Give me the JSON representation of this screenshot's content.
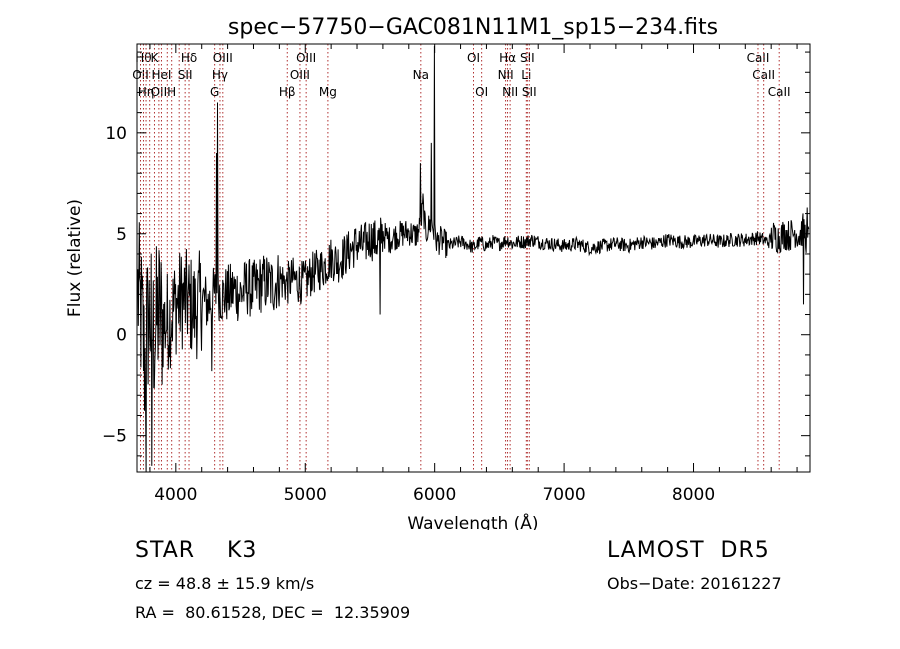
{
  "chart_data": {
    "type": "line",
    "title": "spec−57750−GAC081N11M1_sp15−234.fits",
    "xlabel": "Wavelength (Å)",
    "ylabel": "Flux (relative)",
    "xlim": [
      3700,
      8900
    ],
    "ylim": [
      -6.8,
      14.4
    ],
    "x_ticks": [
      4000,
      5000,
      6000,
      7000,
      8000
    ],
    "y_ticks": [
      -5,
      0,
      5,
      10
    ],
    "grid": false,
    "series_color": "#000000",
    "line_marker_color": "#b03030",
    "spectrum_anchor_points": {
      "x": [
        3710,
        3740,
        3760,
        3780,
        3800,
        3830,
        3870,
        3900,
        3950,
        4000,
        4050,
        4100,
        4150,
        4200,
        4250,
        4300,
        4330,
        4360,
        4400,
        4450,
        4500,
        4550,
        4600,
        4650,
        4700,
        4750,
        4800,
        4860,
        4900,
        4950,
        5000,
        5050,
        5100,
        5150,
        5200,
        5250,
        5300,
        5350,
        5400,
        5450,
        5500,
        5550,
        5600,
        5650,
        5700,
        5750,
        5800,
        5850,
        5880,
        5895,
        5910,
        5930,
        5950,
        5980,
        5990,
        6000,
        6020,
        6050,
        6100,
        6150,
        6200,
        6250,
        6300,
        6350,
        6400,
        6450,
        6500,
        6560,
        6600,
        6650,
        6700,
        6750,
        6800,
        6900,
        7000,
        7100,
        7200,
        7300,
        7400,
        7500,
        7600,
        7700,
        7800,
        7900,
        8000,
        8100,
        8200,
        8300,
        8400,
        8500,
        8540,
        8580,
        8620,
        8660,
        8700,
        8740,
        8760,
        8790,
        8810,
        8830,
        8850,
        8870,
        8890
      ],
      "y": [
        2.0,
        0.5,
        -1.5,
        0.5,
        1.0,
        0.0,
        1.2,
        0.5,
        0.8,
        1.5,
        1.8,
        1.6,
        1.2,
        1.8,
        1.5,
        2.0,
        2.2,
        1.9,
        2.0,
        2.2,
        2.0,
        2.4,
        2.2,
        2.5,
        2.6,
        2.4,
        2.8,
        2.5,
        2.8,
        2.6,
        2.6,
        3.0,
        3.2,
        3.4,
        3.8,
        3.6,
        3.9,
        4.2,
        4.5,
        4.4,
        4.8,
        4.6,
        5.0,
        4.7,
        4.9,
        5.0,
        5.1,
        4.9,
        5.2,
        5.5,
        6.5,
        5.0,
        5.3,
        5.6,
        5.1,
        4.9,
        4.6,
        4.7,
        4.4,
        4.5,
        4.6,
        4.5,
        4.3,
        4.6,
        4.4,
        4.6,
        4.5,
        4.7,
        4.5,
        4.6,
        4.6,
        4.7,
        4.6,
        4.5,
        4.4,
        4.5,
        4.3,
        4.4,
        4.5,
        4.4,
        4.6,
        4.5,
        4.7,
        4.6,
        4.6,
        4.7,
        4.6,
        4.7,
        4.7,
        4.8,
        4.7,
        4.6,
        4.9,
        4.8,
        5.0,
        4.9,
        5.0,
        5.1,
        4.9,
        5.0,
        5.3,
        4.8,
        4.7
      ]
    },
    "spikes": [
      {
        "x": 5890,
        "y": 8.5
      },
      {
        "x": 5998,
        "y": 14.3
      },
      {
        "x": 5975,
        "y": 9.5
      },
      {
        "x": 4322,
        "y": 11.5
      },
      {
        "x": 4316,
        "y": 9.0
      },
      {
        "x": 5580,
        "y": 1.0
      },
      {
        "x": 4280,
        "y": -1.8
      },
      {
        "x": 3770,
        "y": -6.8
      },
      {
        "x": 3815,
        "y": -6.5
      },
      {
        "x": 8850,
        "y": 1.5
      },
      {
        "x": 8880,
        "y": 6.3
      }
    ],
    "line_markers": [
      {
        "x": 3727,
        "row": 1,
        "label": "OII"
      },
      {
        "x": 3750,
        "row": 0,
        "label": "Hθ"
      },
      {
        "x": 3770,
        "row": 2,
        "label": "Hη"
      },
      {
        "x": 3798,
        "row": 0,
        "label": ""
      },
      {
        "x": 3835,
        "row": 0,
        "label": "K"
      },
      {
        "x": 3869,
        "row": 2,
        "label": "OII"
      },
      {
        "x": 3889,
        "row": 1,
        "label": "HeI"
      },
      {
        "x": 3934,
        "row": 0,
        "label": ""
      },
      {
        "x": 3968,
        "row": 2,
        "label": "H"
      },
      {
        "x": 4026,
        "row": 0,
        "label": ""
      },
      {
        "x": 4072,
        "row": 1,
        "label": "SII"
      },
      {
        "x": 4102,
        "row": 0,
        "label": "Hδ"
      },
      {
        "x": 4300,
        "row": 2,
        "label": "G"
      },
      {
        "x": 4341,
        "row": 1,
        "label": "Hγ"
      },
      {
        "x": 4363,
        "row": 0,
        "label": "OIII"
      },
      {
        "x": 4861,
        "row": 2,
        "label": "Hβ"
      },
      {
        "x": 4959,
        "row": 1,
        "label": "OIII"
      },
      {
        "x": 5007,
        "row": 0,
        "label": "OIII"
      },
      {
        "x": 5175,
        "row": 2,
        "label": "Mg"
      },
      {
        "x": 5893,
        "row": 1,
        "label": "Na"
      },
      {
        "x": 6300,
        "row": 0,
        "label": "OI"
      },
      {
        "x": 6363,
        "row": 2,
        "label": "OI"
      },
      {
        "x": 6548,
        "row": 1,
        "label": "NII"
      },
      {
        "x": 6563,
        "row": 0,
        "label": "Hα"
      },
      {
        "x": 6583,
        "row": 2,
        "label": "NII"
      },
      {
        "x": 6708,
        "row": 1,
        "label": "Li"
      },
      {
        "x": 6716,
        "row": 0,
        "label": "SII"
      },
      {
        "x": 6731,
        "row": 2,
        "label": "SII"
      },
      {
        "x": 8498,
        "row": 0,
        "label": "CaII"
      },
      {
        "x": 8542,
        "row": 1,
        "label": "CaII"
      },
      {
        "x": 8662,
        "row": 2,
        "label": "CaII"
      }
    ]
  },
  "info": {
    "object_class": "STAR    K3",
    "survey": "LAMOST  DR5",
    "cz": "cz = 48.8 ± 15.9 km/s",
    "obs_date": "Obs−Date: 20161227",
    "radec": "RA =  80.61528, DEC =  12.35909"
  }
}
